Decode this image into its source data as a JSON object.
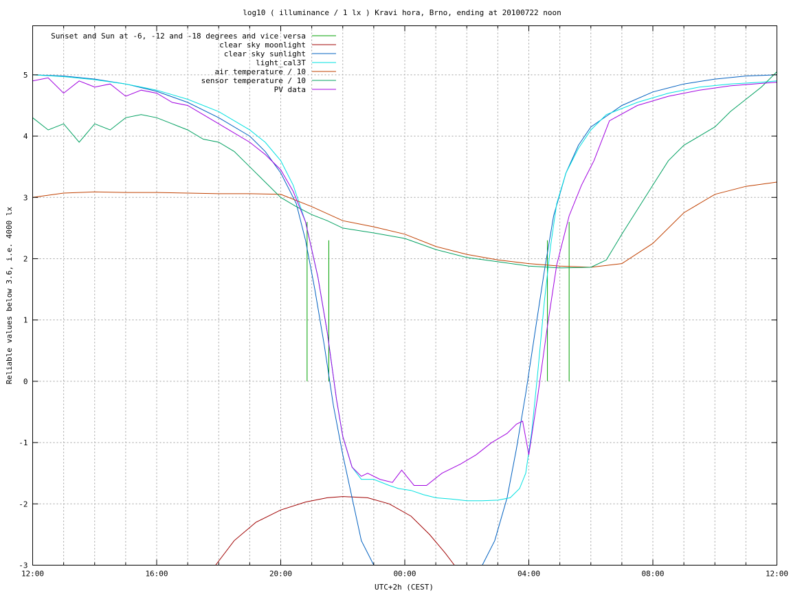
{
  "chart_data": {
    "type": "line",
    "title": "log10 ( illuminance / 1 lx ) Kravi hora, Brno, ending at 20100722 noon",
    "xlabel": "UTC+2h (CEST)",
    "ylabel": "Reliable values below 3.6, i.e. 4000 lx",
    "xlim": [
      0,
      24
    ],
    "ylim": [
      -3,
      5.8
    ],
    "x_ticks": [
      {
        "value": 0,
        "label": "12:00"
      },
      {
        "value": 4,
        "label": "16:00"
      },
      {
        "value": 8,
        "label": "20:00"
      },
      {
        "value": 12,
        "label": "00:00"
      },
      {
        "value": 16,
        "label": "04:00"
      },
      {
        "value": 20,
        "label": "08:00"
      },
      {
        "value": 24,
        "label": "12:00"
      }
    ],
    "y_ticks": [
      {
        "value": 5,
        "label": "5"
      },
      {
        "value": 4,
        "label": "4"
      },
      {
        "value": 3,
        "label": "3"
      },
      {
        "value": 2,
        "label": "2"
      },
      {
        "value": 1,
        "label": "1"
      },
      {
        "value": 0,
        "label": "0"
      },
      {
        "value": -1,
        "label": "-1"
      },
      {
        "value": -2,
        "label": "-2"
      },
      {
        "value": -3,
        "label": "-3"
      }
    ],
    "grid": true,
    "legend_position": "top-left",
    "series": [
      {
        "name": "Sunset and Sun at -6, -12 and -18 degrees and vice versa",
        "color": "#00a000",
        "style": "vlines",
        "x": [
          8.85,
          9.55,
          10.45,
          11.7,
          14.5,
          15.7,
          16.6,
          17.3
        ],
        "y_from": 0,
        "y_to": [
          2.6,
          2.3,
          0,
          0,
          0,
          0,
          2.3,
          2.6
        ]
      },
      {
        "name": "clear sky moonlight",
        "color": "#a00000",
        "x": [
          5.9,
          6.5,
          7.2,
          8.0,
          8.8,
          9.5,
          10.0,
          10.8,
          11.5,
          12.2,
          12.8,
          13.3,
          13.6
        ],
        "y": [
          -3.0,
          -2.6,
          -2.3,
          -2.1,
          -1.97,
          -1.9,
          -1.88,
          -1.9,
          -2.0,
          -2.2,
          -2.5,
          -2.8,
          -3.0
        ]
      },
      {
        "name": "clear sky sunlight",
        "color": "#0060c0",
        "x": [
          0,
          1,
          2,
          3,
          4,
          5,
          6,
          7,
          7.5,
          8,
          8.5,
          8.8,
          9.1,
          9.4,
          9.7,
          10.0,
          10.3,
          10.6,
          11.0,
          11.5,
          12.0,
          12.5,
          13.0,
          13.5,
          14.0,
          14.5,
          14.9,
          15.3,
          15.6,
          15.9,
          16.2,
          16.5,
          16.8,
          17.2,
          17.6,
          18.0,
          19,
          20,
          21,
          22,
          23,
          24
        ],
        "y": [
          5.0,
          4.98,
          4.93,
          4.85,
          4.73,
          4.55,
          4.3,
          4.0,
          3.75,
          3.4,
          2.9,
          2.3,
          1.5,
          0.6,
          -0.4,
          -1.2,
          -1.9,
          -2.6,
          -3.0,
          -3.0,
          -3.0,
          -3.0,
          -3.0,
          -3.0,
          -3.0,
          -3.0,
          -2.6,
          -1.9,
          -1.1,
          -0.2,
          0.8,
          1.8,
          2.7,
          3.4,
          3.85,
          4.15,
          4.5,
          4.72,
          4.85,
          4.93,
          4.98,
          5.0
        ]
      },
      {
        "name": "light_cal3T",
        "color": "#00e0e0",
        "x": [
          0,
          1,
          2,
          3,
          4,
          5,
          6,
          7,
          7.5,
          8,
          8.4,
          8.8,
          9.2,
          9.5,
          9.8,
          10.0,
          10.3,
          10.6,
          11.0,
          11.5,
          11.8,
          12.2,
          12.6,
          13.0,
          13.5,
          14.0,
          14.5,
          15.0,
          15.4,
          15.7,
          15.9,
          16.1,
          16.3,
          16.5,
          16.7,
          16.9,
          17.2,
          17.6,
          18.0,
          18.5,
          19.5,
          20.5,
          21.5,
          22.5,
          23.5,
          24
        ],
        "y": [
          5.0,
          4.97,
          4.92,
          4.85,
          4.75,
          4.6,
          4.4,
          4.1,
          3.9,
          3.6,
          3.2,
          2.6,
          1.7,
          0.8,
          -0.3,
          -0.9,
          -1.4,
          -1.6,
          -1.6,
          -1.7,
          -1.75,
          -1.78,
          -1.85,
          -1.9,
          -1.92,
          -1.95,
          -1.95,
          -1.94,
          -1.9,
          -1.75,
          -1.5,
          -0.8,
          0.2,
          1.3,
          2.2,
          2.9,
          3.4,
          3.8,
          4.1,
          4.35,
          4.55,
          4.7,
          4.8,
          4.85,
          4.88,
          4.9
        ]
      },
      {
        "name": "air temperature / 10",
        "color": "#c04000",
        "x": [
          0,
          1,
          2,
          3,
          4,
          5,
          6,
          7,
          8,
          9,
          10,
          11,
          12,
          13,
          14,
          15,
          16,
          17,
          18,
          19,
          20,
          21,
          22,
          23,
          24
        ],
        "y": [
          3.0,
          3.07,
          3.09,
          3.08,
          3.08,
          3.07,
          3.06,
          3.06,
          3.05,
          2.85,
          2.62,
          2.52,
          2.4,
          2.2,
          2.07,
          1.98,
          1.92,
          1.88,
          1.86,
          1.92,
          2.25,
          2.75,
          3.05,
          3.18,
          3.25
        ]
      },
      {
        "name": "sensor temperature / 10",
        "color": "#00a060",
        "x": [
          0,
          0.5,
          1.0,
          1.5,
          2.0,
          2.5,
          3.0,
          3.5,
          4.0,
          4.5,
          5.0,
          5.5,
          6.0,
          6.5,
          7.0,
          7.5,
          8.0,
          8.5,
          9.0,
          9.5,
          10.0,
          11.0,
          12.0,
          13.0,
          14.0,
          15.0,
          16.0,
          17.0,
          18.0,
          18.5,
          19.0,
          19.5,
          20.0,
          20.5,
          21.0,
          21.5,
          22.0,
          22.5,
          23.0,
          23.5,
          24
        ],
        "y": [
          4.3,
          4.1,
          4.2,
          3.9,
          4.2,
          4.1,
          4.3,
          4.35,
          4.3,
          4.2,
          4.1,
          3.95,
          3.9,
          3.75,
          3.5,
          3.25,
          3.0,
          2.85,
          2.72,
          2.62,
          2.5,
          2.42,
          2.33,
          2.15,
          2.02,
          1.95,
          1.88,
          1.85,
          1.86,
          1.98,
          2.4,
          2.8,
          3.2,
          3.6,
          3.85,
          4.0,
          4.15,
          4.4,
          4.6,
          4.8,
          5.05
        ]
      },
      {
        "name": "PV data",
        "color": "#a000e0",
        "x": [
          0,
          0.5,
          1.0,
          1.5,
          2.0,
          2.5,
          3.0,
          3.5,
          4.0,
          4.5,
          5.0,
          5.5,
          6.0,
          6.5,
          7.0,
          7.5,
          8.0,
          8.4,
          8.8,
          9.2,
          9.5,
          9.8,
          10.0,
          10.3,
          10.6,
          10.8,
          11.2,
          11.6,
          11.9,
          12.3,
          12.7,
          13.2,
          13.8,
          14.3,
          14.8,
          15.3,
          15.6,
          15.8,
          16.0,
          16.3,
          16.6,
          16.9,
          17.3,
          17.7,
          18.1,
          18.6,
          19.5,
          20.5,
          21.5,
          22.5,
          23.5,
          24
        ],
        "y": [
          4.9,
          4.95,
          4.7,
          4.9,
          4.8,
          4.85,
          4.65,
          4.75,
          4.7,
          4.55,
          4.5,
          4.35,
          4.2,
          4.05,
          3.9,
          3.7,
          3.45,
          3.1,
          2.6,
          1.7,
          0.8,
          -0.3,
          -0.9,
          -1.4,
          -1.55,
          -1.5,
          -1.6,
          -1.65,
          -1.45,
          -1.7,
          -1.7,
          -1.5,
          -1.35,
          -1.2,
          -1.0,
          -0.85,
          -0.7,
          -0.65,
          -1.2,
          -0.2,
          0.9,
          1.9,
          2.7,
          3.2,
          3.6,
          4.25,
          4.5,
          4.65,
          4.75,
          4.82,
          4.86,
          4.88
        ]
      }
    ]
  }
}
